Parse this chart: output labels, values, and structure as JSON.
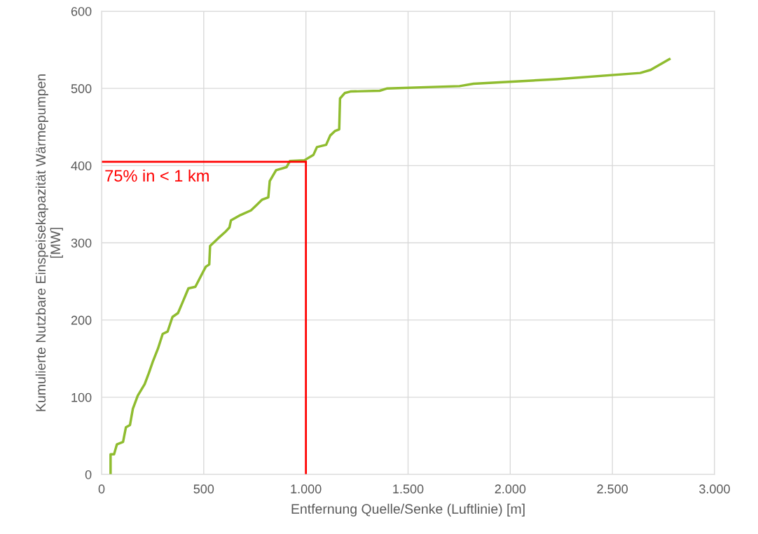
{
  "chart_data": {
    "type": "line",
    "xlabel": "Entfernung Quelle/Senke (Luftlinie) [m]",
    "ylabel": "Kumulierte Nutzbare Einspeisekapazität Wärmepumpen\n[MW]",
    "series": [
      {
        "color": "#8fbc2f",
        "x": [
          44,
          44,
          61,
          75,
          105,
          119,
          139,
          153,
          177,
          211,
          231,
          252,
          276,
          299,
          323,
          347,
          374,
          395,
          425,
          459,
          490,
          510,
          527,
          531,
          571,
          605,
          626,
          633,
          680,
          731,
          759,
          786,
          816,
          823,
          854,
          905,
          922,
          993,
          1037,
          1054,
          1099,
          1119,
          1143,
          1163,
          1167,
          1190,
          1218,
          1361,
          1398,
          1752,
          1820,
          2228,
          2636,
          2687,
          2779
        ],
        "values": [
          0,
          26,
          26,
          39,
          42,
          61,
          64,
          85,
          102,
          117,
          131,
          147,
          163,
          182,
          185,
          204,
          209,
          222,
          241,
          243,
          259,
          269,
          272,
          296,
          306,
          314,
          320,
          329,
          336,
          342,
          349,
          356,
          359,
          380,
          394,
          398,
          406,
          407,
          414,
          424,
          427,
          439,
          445,
          447,
          487,
          494,
          496,
          497,
          500,
          503,
          506,
          512,
          520,
          524,
          538
        ]
      }
    ],
    "ref_lines": [
      {
        "axis": "x",
        "value": 1000,
        "color": "#ff0000"
      },
      {
        "axis": "y",
        "value": 405,
        "color": "#ff0000"
      }
    ],
    "annotations": [
      {
        "text": "75% in < 1 km",
        "x": 0,
        "y": 405
      }
    ],
    "xlim": [
      0,
      3000
    ],
    "ylim": [
      0,
      600
    ],
    "xticks": [
      0,
      500,
      {
        "value": 1000,
        "label": "1.000"
      },
      {
        "value": 1500,
        "label": "1.500"
      },
      {
        "value": 2000,
        "label": "2.000"
      },
      {
        "value": 2500,
        "label": "2.500"
      },
      {
        "value": 3000,
        "label": "3.000"
      }
    ],
    "yticks": [
      0,
      100,
      200,
      300,
      400,
      500,
      600
    ],
    "grid": true,
    "marker": "none",
    "line_style": "solid"
  }
}
